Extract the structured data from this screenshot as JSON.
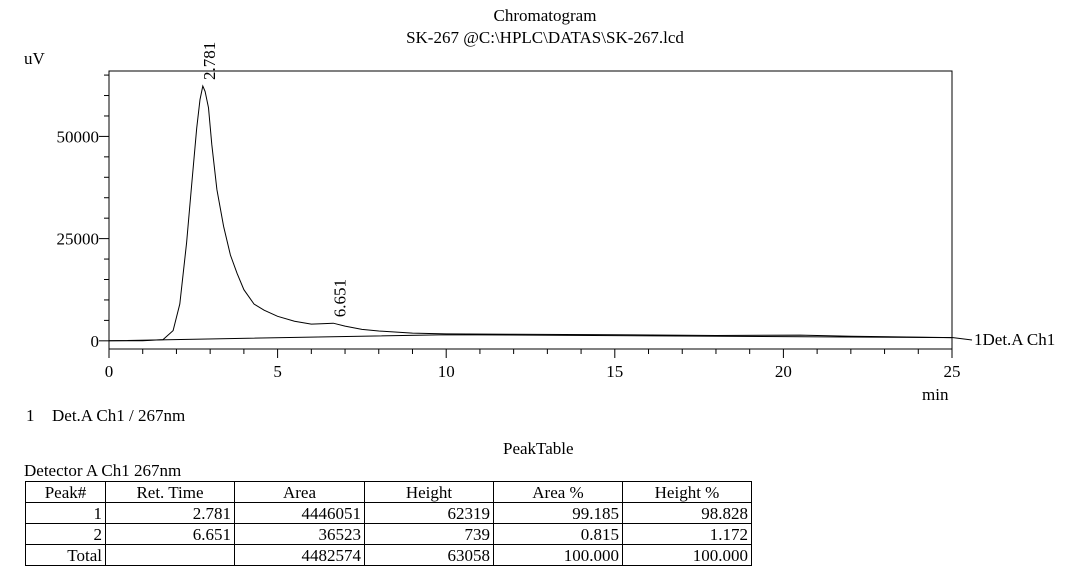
{
  "header": {
    "title": "Chromatogram",
    "subtitle": "SK-267 @C:\\HPLC\\DATAS\\SK-267.lcd"
  },
  "chart_data": {
    "type": "line",
    "ylabel": "uV",
    "xlabel": "min",
    "xlim": [
      0,
      25
    ],
    "ylim": [
      -2000,
      66000
    ],
    "x_ticks": [
      0,
      5,
      10,
      15,
      20,
      25
    ],
    "y_ticks": [
      0,
      25000,
      50000
    ],
    "series": [
      {
        "name": "1Det.A Ch1",
        "x": [
          0,
          1.0,
          1.6,
          1.9,
          2.1,
          2.3,
          2.45,
          2.6,
          2.7,
          2.781,
          2.85,
          2.95,
          3.05,
          3.2,
          3.4,
          3.6,
          3.8,
          4.0,
          4.3,
          4.6,
          5.0,
          5.5,
          6.0,
          6.3,
          6.651,
          7.0,
          7.5,
          8.0,
          9.0,
          10.0,
          12.0,
          15.0,
          18.0,
          20.5,
          22.0,
          25.0
        ],
        "y": [
          0,
          20,
          300,
          2500,
          9000,
          24000,
          38000,
          52000,
          59000,
          62319,
          61000,
          57000,
          48000,
          37000,
          28000,
          21000,
          16500,
          12500,
          9000,
          7500,
          6000,
          4800,
          4100,
          4200,
          4300,
          3600,
          2800,
          2400,
          1900,
          1700,
          1600,
          1500,
          1300,
          1400,
          1100,
          800
        ]
      }
    ],
    "baseline": {
      "x": [
        0,
        10,
        25
      ],
      "y": [
        0,
        1500,
        800
      ]
    },
    "peak_labels": [
      {
        "text": "2.781",
        "x": 2.781,
        "y": 62319
      },
      {
        "text": "6.651",
        "x": 6.651,
        "y": 4300
      }
    ],
    "detector_label": "1Det.A Ch1"
  },
  "detector_line": {
    "index": "1",
    "text": "Det.A Ch1 / 267nm"
  },
  "peak_table": {
    "title": "PeakTable",
    "detector": "Detector A Ch1 267nm",
    "headers": [
      "Peak#",
      "Ret. Time",
      "Area",
      "Height",
      "Area %",
      "Height %"
    ],
    "rows": [
      [
        "1",
        "2.781",
        "4446051",
        "62319",
        "99.185",
        "98.828"
      ],
      [
        "2",
        "6.651",
        "36523",
        "739",
        "0.815",
        "1.172"
      ],
      [
        "Total",
        "",
        "4482574",
        "63058",
        "100.000",
        "100.000"
      ]
    ]
  }
}
